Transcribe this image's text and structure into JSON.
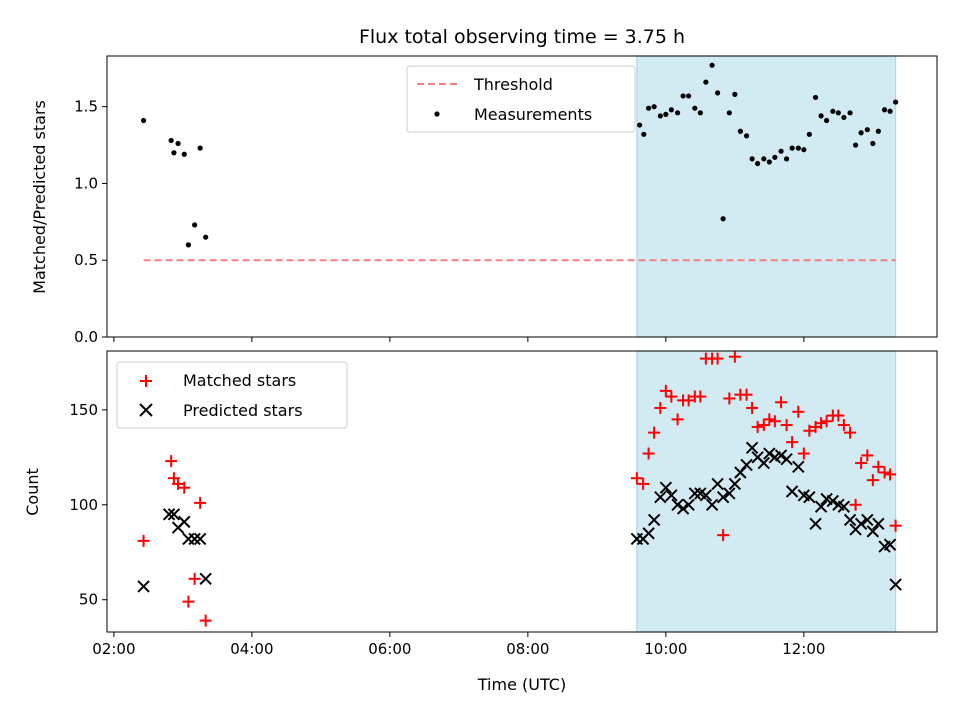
{
  "chart_data": {
    "title": "Flux total observing time = 3.75 h",
    "xlabel": "Time (UTC)",
    "x_ticks": [
      "02:00",
      "04:00",
      "06:00",
      "08:00",
      "10:00",
      "12:00"
    ],
    "x_tick_hours": [
      2,
      4,
      6,
      8,
      10,
      12
    ],
    "xlim": [
      1.9,
      13.93
    ],
    "shaded_span": [
      9.58,
      13.33
    ],
    "colors": {
      "shade": "#add8e6",
      "threshold": "#f08080",
      "measurements": "#000000",
      "matched": "#ff0000",
      "predicted": "#000000"
    },
    "top": {
      "type": "scatter",
      "ylabel": "Matched/Predicted stars",
      "ylim": [
        0,
        1.83
      ],
      "y_ticks": [
        0.0,
        0.5,
        1.0,
        1.5
      ],
      "y_tick_labels": [
        "0.0",
        "0.5",
        "1.0",
        "1.5"
      ],
      "threshold": {
        "name": "Threshold",
        "value": 0.5,
        "x_range": [
          2.43,
          13.33
        ]
      },
      "legend": {
        "threshold_label": "Threshold",
        "measurements_label": "Measurements",
        "placement": "upper center"
      },
      "measurements": {
        "name": "Measurements",
        "x": [
          2.43,
          2.83,
          2.87,
          2.93,
          3.02,
          3.08,
          3.17,
          3.25,
          3.33,
          9.62,
          9.68,
          9.75,
          9.83,
          9.92,
          10.0,
          10.08,
          10.17,
          10.25,
          10.33,
          10.42,
          10.5,
          10.58,
          10.67,
          10.75,
          10.83,
          10.92,
          11.0,
          11.08,
          11.17,
          11.25,
          11.33,
          11.42,
          11.5,
          11.58,
          11.67,
          11.75,
          11.83,
          11.92,
          12.0,
          12.08,
          12.17,
          12.25,
          12.33,
          12.42,
          12.5,
          12.58,
          12.67,
          12.75,
          12.83,
          12.92,
          13.0,
          13.08,
          13.17,
          13.25,
          13.33
        ],
        "y": [
          1.41,
          1.28,
          1.2,
          1.26,
          1.19,
          0.6,
          0.73,
          1.23,
          0.65,
          1.38,
          1.32,
          1.49,
          1.5,
          1.44,
          1.45,
          1.48,
          1.46,
          1.57,
          1.57,
          1.49,
          1.46,
          1.66,
          1.77,
          1.59,
          0.77,
          1.46,
          1.58,
          1.34,
          1.31,
          1.16,
          1.13,
          1.16,
          1.14,
          1.17,
          1.21,
          1.16,
          1.23,
          1.23,
          1.22,
          1.32,
          1.56,
          1.44,
          1.41,
          1.47,
          1.46,
          1.43,
          1.46,
          1.25,
          1.33,
          1.35,
          1.26,
          1.34,
          1.48,
          1.47,
          1.53
        ]
      }
    },
    "bottom": {
      "type": "scatter",
      "ylabel": "Count",
      "ylim": [
        33,
        181
      ],
      "y_ticks": [
        50,
        100,
        150
      ],
      "y_tick_labels": [
        "50",
        "100",
        "150"
      ],
      "legend": {
        "matched_label": "Matched stars",
        "predicted_label": "Predicted stars",
        "placement": "upper left"
      },
      "series": [
        {
          "name": "Matched stars",
          "marker": "+",
          "x": [
            2.43,
            2.83,
            2.87,
            2.93,
            3.02,
            3.08,
            3.17,
            3.25,
            3.33,
            9.58,
            9.67,
            9.75,
            9.83,
            9.92,
            10.0,
            10.08,
            10.17,
            10.25,
            10.33,
            10.42,
            10.5,
            10.58,
            10.67,
            10.75,
            10.83,
            10.92,
            11.0,
            11.08,
            11.17,
            11.25,
            11.33,
            11.42,
            11.5,
            11.58,
            11.67,
            11.75,
            11.83,
            11.92,
            12.0,
            12.08,
            12.17,
            12.25,
            12.33,
            12.42,
            12.5,
            12.58,
            12.67,
            12.75,
            12.83,
            12.92,
            13.0,
            13.08,
            13.17,
            13.25,
            13.33
          ],
          "y": [
            81,
            123,
            114,
            111,
            109,
            49,
            61,
            101,
            39,
            114,
            111,
            127,
            138,
            151,
            160,
            157,
            145,
            155,
            155,
            157,
            157,
            177,
            177,
            177,
            84,
            156,
            178,
            158,
            158,
            151,
            141,
            142,
            145,
            144,
            154,
            142,
            133,
            149,
            127,
            139,
            141,
            143,
            144,
            147,
            147,
            142,
            138,
            100,
            122,
            126,
            113,
            120,
            117,
            116,
            89
          ]
        },
        {
          "name": "Predicted stars",
          "marker": "x",
          "x": [
            2.43,
            2.8,
            2.87,
            2.93,
            3.02,
            3.08,
            3.17,
            3.25,
            3.33,
            9.58,
            9.67,
            9.75,
            9.83,
            9.92,
            10.0,
            10.08,
            10.17,
            10.25,
            10.33,
            10.42,
            10.5,
            10.58,
            10.67,
            10.75,
            10.83,
            10.92,
            11.0,
            11.08,
            11.17,
            11.25,
            11.33,
            11.42,
            11.5,
            11.58,
            11.67,
            11.75,
            11.83,
            11.92,
            12.0,
            12.08,
            12.17,
            12.25,
            12.33,
            12.42,
            12.5,
            12.58,
            12.67,
            12.75,
            12.83,
            12.92,
            13.0,
            13.08,
            13.17,
            13.25,
            13.33
          ],
          "y": [
            57,
            95,
            95,
            88,
            91,
            82,
            82,
            82,
            61,
            82,
            82,
            85,
            92,
            104,
            109,
            105,
            100,
            98,
            100,
            106,
            106,
            105,
            100,
            111,
            104,
            106,
            111,
            117,
            121,
            130,
            125,
            122,
            127,
            125,
            126,
            124,
            107,
            120,
            105,
            104,
            90,
            99,
            103,
            102,
            100,
            99,
            92,
            87,
            90,
            92,
            86,
            90,
            78,
            79,
            58
          ]
        }
      ]
    }
  }
}
